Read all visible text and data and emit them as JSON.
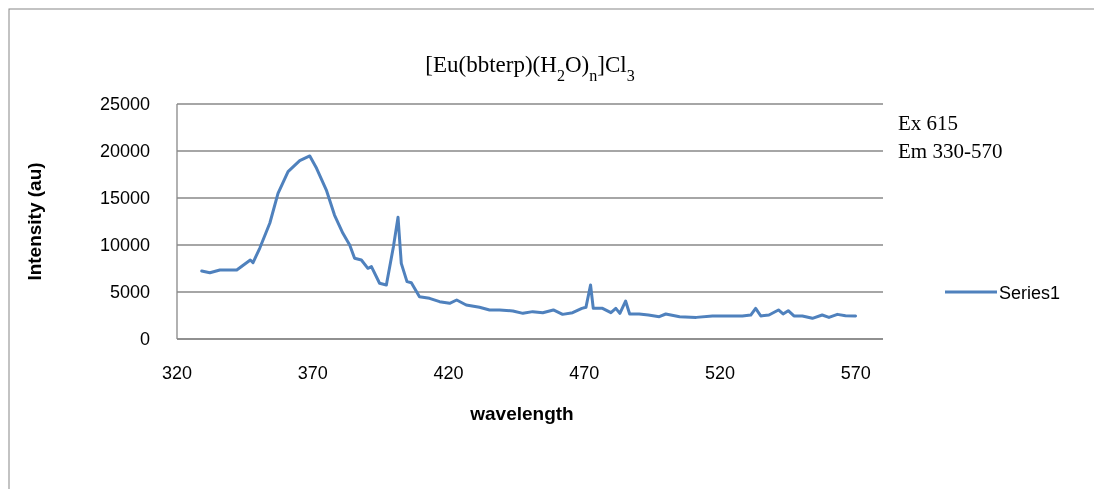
{
  "chart_data": {
    "type": "line",
    "title": "[Eu(bbterp)(H$_{2}$O)$_{n}$]Cl$_{3}$",
    "xlabel": "wavelength",
    "ylabel": "Intensity (au)",
    "annotations": [
      "Ex 615",
      "Em 330-570"
    ],
    "xlim": [
      320,
      580
    ],
    "xticks": [
      320,
      370,
      420,
      470,
      520,
      570
    ],
    "ylim": [
      0,
      25000
    ],
    "yticks": [
      0,
      5000,
      10000,
      15000,
      20000,
      25000
    ],
    "grid": "y",
    "legend": "right",
    "marker": "none",
    "line_style": "solid",
    "series": [
      {
        "name": "Series1",
        "color": "#4f81bd",
        "x": [
          329.1,
          332.1,
          335.8,
          342,
          347,
          348,
          350.5,
          354.2,
          357.2,
          360.9,
          365.2,
          368.9,
          371.4,
          375,
          378,
          381.1,
          383.6,
          385.4,
          387.9,
          390.3,
          391.6,
          394.6,
          397.1,
          399.7,
          401.4,
          402.6,
          404.7,
          406.3,
          409.3,
          413,
          416.7,
          420.4,
          423,
          426.5,
          431.4,
          435.1,
          438.8,
          443.7,
          447.4,
          451,
          454.7,
          458.6,
          462,
          465.7,
          469.1,
          470.6,
          472.3,
          473.3,
          476.7,
          479.8,
          481.6,
          483.1,
          485.2,
          486.7,
          490.2,
          493.6,
          497.6,
          500,
          505.1,
          511.2,
          517.2,
          522.1,
          528.2,
          531.3,
          533.1,
          535,
          538,
          541.5,
          543.2,
          545.1,
          547.2,
          550.3,
          554,
          557.6,
          560.1,
          563.2,
          566.2,
          569.9
        ],
        "values": [
          7230,
          7050,
          7340,
          7340,
          8400,
          8120,
          9680,
          12340,
          15500,
          17800,
          18970,
          19470,
          18160,
          15850,
          13190,
          11240,
          10000,
          8590,
          8400,
          7520,
          7700,
          5930,
          5740,
          9820,
          12950,
          8050,
          6100,
          5990,
          4500,
          4330,
          3970,
          3800,
          4150,
          3620,
          3370,
          3090,
          3090,
          2980,
          2730,
          2910,
          2800,
          3090,
          2620,
          2800,
          3260,
          3370,
          5740,
          3260,
          3260,
          2800,
          3260,
          2730,
          4040,
          2660,
          2660,
          2550,
          2370,
          2660,
          2370,
          2300,
          2450,
          2450,
          2450,
          2550,
          3260,
          2450,
          2550,
          3090,
          2660,
          3010,
          2450,
          2450,
          2200,
          2550,
          2300,
          2620,
          2480,
          2450
        ]
      }
    ]
  }
}
